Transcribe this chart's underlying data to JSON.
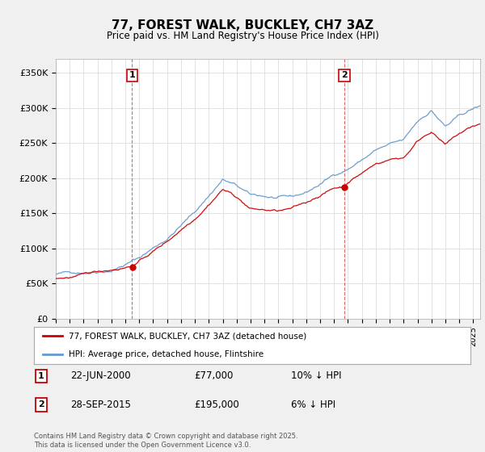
{
  "title": "77, FOREST WALK, BUCKLEY, CH7 3AZ",
  "subtitle": "Price paid vs. HM Land Registry's House Price Index (HPI)",
  "ylabel_ticks": [
    "£0",
    "£50K",
    "£100K",
    "£150K",
    "£200K",
    "£250K",
    "£300K",
    "£350K"
  ],
  "ytick_values": [
    0,
    50000,
    100000,
    150000,
    200000,
    250000,
    300000,
    350000
  ],
  "ylim": [
    0,
    370000
  ],
  "xlim_start": 1995.0,
  "xlim_end": 2025.5,
  "sale1_year": 2000.47,
  "sale1_price": 77000,
  "sale1_label": "1",
  "sale2_year": 2015.74,
  "sale2_price": 195000,
  "sale2_label": "2",
  "red_line_color": "#cc0000",
  "blue_line_color": "#6699cc",
  "vline_color": "#cc0000",
  "grid_color": "#dddddd",
  "background_color": "#f0f0f0",
  "plot_bg_color": "#ffffff",
  "legend_label_red": "77, FOREST WALK, BUCKLEY, CH7 3AZ (detached house)",
  "legend_label_blue": "HPI: Average price, detached house, Flintshire",
  "footnote": "Contains HM Land Registry data © Crown copyright and database right 2025.\nThis data is licensed under the Open Government Licence v3.0.",
  "table_entries": [
    {
      "label": "1",
      "date": "22-JUN-2000",
      "price": "£77,000",
      "hpi": "10% ↓ HPI"
    },
    {
      "label": "2",
      "date": "28-SEP-2015",
      "price": "£195,000",
      "hpi": "6% ↓ HPI"
    }
  ],
  "xtick_years": [
    1995,
    1996,
    1997,
    1998,
    1999,
    2000,
    2001,
    2002,
    2003,
    2004,
    2005,
    2006,
    2007,
    2008,
    2009,
    2010,
    2011,
    2012,
    2013,
    2014,
    2015,
    2016,
    2017,
    2018,
    2019,
    2020,
    2021,
    2022,
    2023,
    2024,
    2025
  ],
  "hpi_waypoints_x": [
    1995,
    1997,
    1999,
    2001,
    2003,
    2005,
    2007,
    2008,
    2009,
    2010,
    2011,
    2012,
    2013,
    2014,
    2015,
    2016,
    2017,
    2018,
    2019,
    2020,
    2021,
    2022,
    2023,
    2024,
    2025,
    2025.5
  ],
  "hpi_waypoints_y": [
    63000,
    67000,
    74000,
    92000,
    120000,
    158000,
    205000,
    195000,
    180000,
    178000,
    175000,
    174000,
    180000,
    192000,
    205000,
    215000,
    228000,
    242000,
    248000,
    252000,
    278000,
    295000,
    272000,
    285000,
    295000,
    298000
  ],
  "price_waypoints_x": [
    1995,
    1997,
    1999,
    2000.47,
    2001,
    2003,
    2005,
    2007,
    2008,
    2009,
    2010,
    2011,
    2012,
    2013,
    2014,
    2015,
    2015.74,
    2016,
    2017,
    2018,
    2019,
    2020,
    2021,
    2022,
    2023,
    2024,
    2025,
    2025.5
  ],
  "price_waypoints_y": [
    58000,
    62000,
    70000,
    77000,
    84000,
    112000,
    148000,
    193000,
    182000,
    165000,
    163000,
    161000,
    163000,
    170000,
    182000,
    192000,
    195000,
    202000,
    215000,
    228000,
    235000,
    238000,
    262000,
    278000,
    258000,
    272000,
    282000,
    285000
  ]
}
